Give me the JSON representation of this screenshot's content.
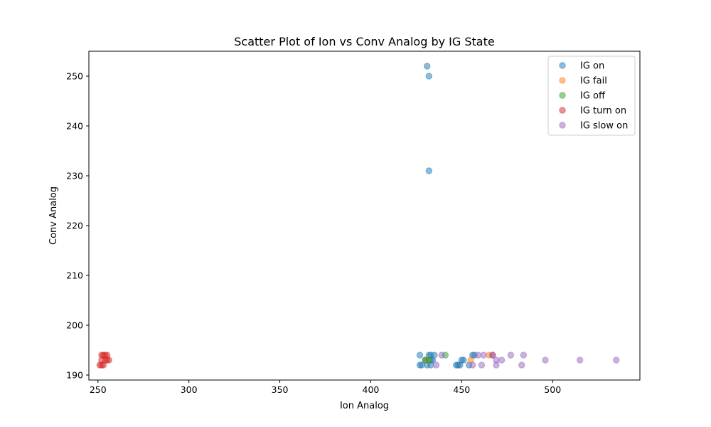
{
  "chart_data": {
    "type": "scatter",
    "title": "Scatter Plot of Ion vs Conv Analog by IG State",
    "xlabel": "Ion Analog",
    "ylabel": "Conv Analog",
    "xlim": [
      245,
      548
    ],
    "ylim": [
      189,
      255
    ],
    "xticks": [
      250,
      300,
      350,
      400,
      450,
      500
    ],
    "yticks": [
      190,
      200,
      210,
      220,
      230,
      240,
      250
    ],
    "grid": false,
    "legend_position": "top-right",
    "series": [
      {
        "name": "IG on",
        "color": "#1f77b4",
        "points": [
          [
            431,
            252
          ],
          [
            432,
            250
          ],
          [
            432,
            231
          ],
          [
            427,
            194
          ],
          [
            432,
            194
          ],
          [
            433,
            194
          ],
          [
            435,
            194
          ],
          [
            456,
            194
          ],
          [
            457,
            194
          ],
          [
            430,
            193
          ],
          [
            433,
            193
          ],
          [
            434,
            193
          ],
          [
            450,
            193
          ],
          [
            451,
            193
          ],
          [
            427,
            192
          ],
          [
            428,
            192
          ],
          [
            431,
            192
          ],
          [
            433,
            192
          ],
          [
            447,
            192
          ],
          [
            448,
            192
          ],
          [
            449,
            192
          ],
          [
            454,
            192
          ]
        ]
      },
      {
        "name": "IG fail",
        "color": "#ff7f0e",
        "points": [
          [
            465,
            194
          ],
          [
            455,
            193
          ],
          [
            431,
            193
          ]
        ]
      },
      {
        "name": "IG off",
        "color": "#2ca02c",
        "points": [
          [
            441,
            194
          ],
          [
            430,
            193
          ],
          [
            432,
            193
          ]
        ]
      },
      {
        "name": "IG turn on",
        "color": "#d62728",
        "points": [
          [
            252,
            194
          ],
          [
            253,
            194
          ],
          [
            254,
            194
          ],
          [
            255,
            194
          ],
          [
            252,
            193
          ],
          [
            254,
            193
          ],
          [
            255,
            193
          ],
          [
            256,
            193
          ],
          [
            251,
            192
          ],
          [
            252,
            192
          ],
          [
            253,
            192
          ],
          [
            467,
            194
          ]
        ]
      },
      {
        "name": "IG slow on",
        "color": "#9467bd",
        "points": [
          [
            439,
            194
          ],
          [
            459,
            194
          ],
          [
            462,
            194
          ],
          [
            467,
            194
          ],
          [
            477,
            194
          ],
          [
            484,
            194
          ],
          [
            469,
            193
          ],
          [
            472,
            193
          ],
          [
            496,
            193
          ],
          [
            515,
            193
          ],
          [
            535,
            193
          ],
          [
            436,
            192
          ],
          [
            456,
            192
          ],
          [
            461,
            192
          ],
          [
            469,
            192
          ],
          [
            483,
            192
          ]
        ]
      }
    ]
  }
}
